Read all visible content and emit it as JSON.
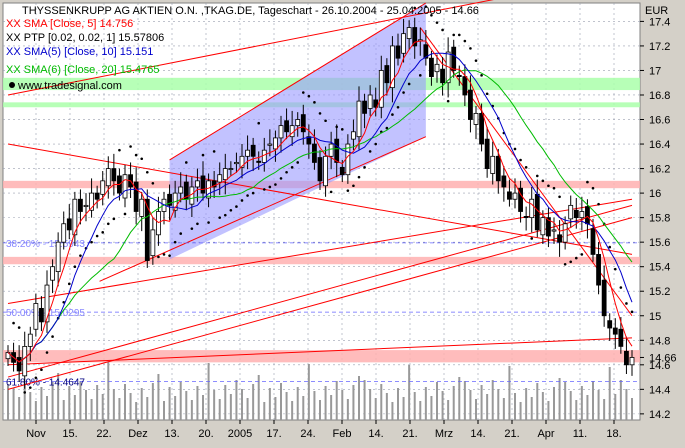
{
  "header": {
    "title": "THYSSENKRUPP AG AKTIEN O.N. ,TKAG.DE, Tageschart - 26.10.2004 - 25.04.2005 - 14.66",
    "currency": "EUR",
    "watermark": "www.tradesignal.com"
  },
  "legend": [
    {
      "label": "XX SMA [Close, 5] 14.756",
      "color": "#ff0000"
    },
    {
      "label": "XX PTP [0.02, 0.02, 1] 15.57806",
      "color": "#000000"
    },
    {
      "label": "XX SMA(5) [Close, 10] 15.151",
      "color": "#0000cc"
    },
    {
      "label": "XX SMA(6) [Close, 20] 15.4765",
      "color": "#00bb00"
    }
  ],
  "fib_labels": [
    {
      "label": "38.20% - 15.5943",
      "value": 15.5943
    },
    {
      "label": "50.00% - 15.0295",
      "value": 15.0295
    },
    {
      "label": "61.80% - 14.4647",
      "value": 14.4647
    }
  ],
  "last_price_label": "14.66",
  "colors": {
    "background": "#ffffff",
    "frame": "#d4d0c8",
    "candle": "#000000",
    "sma5": "#ff0000",
    "sma10": "#0000cc",
    "sma20": "#00bb00",
    "sar": "#000000",
    "channel_fill": "#9999ff",
    "resistance_band": "#ffb0b0",
    "support_band": "#aaffaa",
    "trendline": "#ff0000",
    "volume": "#999999"
  },
  "chart_data": {
    "type": "candlestick",
    "instrument": "THYSSENKRUPP AG AKTIEN O.N. ,TKAG.DE",
    "period": "Tageschart",
    "x_ticks": [
      "Nov",
      "15.",
      "22.",
      "Dez",
      "13.",
      "20.",
      "2005",
      "17.",
      "24.",
      "Feb",
      "14.",
      "21.",
      "Mrz",
      "14.",
      "21.",
      "Apr",
      "11.",
      "18."
    ],
    "y_ticks": [
      14.2,
      14.4,
      14.6,
      14.8,
      15,
      15.2,
      15.4,
      15.6,
      15.8,
      16,
      16.2,
      16.4,
      16.6,
      16.8,
      17,
      17.2,
      17.4
    ],
    "ylim": [
      14.15,
      17.55
    ],
    "last_close": 14.66,
    "closes": [
      14.7,
      14.62,
      14.55,
      14.75,
      14.85,
      15.1,
      14.95,
      15.25,
      15.4,
      15.6,
      15.75,
      15.7,
      15.95,
      15.85,
      15.9,
      16.0,
      15.95,
      16.1,
      16.2,
      16.1,
      16.0,
      16.15,
      16.05,
      15.85,
      15.95,
      15.45,
      15.7,
      15.85,
      15.95,
      15.9,
      16.0,
      16.05,
      15.95,
      16.05,
      16.1,
      16.0,
      16.1,
      16.05,
      16.15,
      16.2,
      16.2,
      16.25,
      16.3,
      16.35,
      16.3,
      16.25,
      16.35,
      16.4,
      16.45,
      16.55,
      16.5,
      16.55,
      16.6,
      16.5,
      16.4,
      16.25,
      16.1,
      16.3,
      16.4,
      16.25,
      16.15,
      16.4,
      16.5,
      16.75,
      16.65,
      16.8,
      16.7,
      17.0,
      16.9,
      17.2,
      17.1,
      17.3,
      17.35,
      17.2,
      17.25,
      17.1,
      16.95,
      17.05,
      16.9,
      17.15,
      17.0,
      16.95,
      16.8,
      16.6,
      16.65,
      16.4,
      16.2,
      16.3,
      16.1,
      16.05,
      15.95,
      16.0,
      15.85,
      15.8,
      15.95,
      15.7,
      15.8,
      15.65,
      15.7,
      15.6,
      15.75,
      15.9,
      15.8,
      15.85,
      15.75,
      15.5,
      15.25,
      15.0,
      14.9,
      14.85,
      14.75,
      14.6,
      14.66
    ],
    "series": [
      {
        "name": "XX SMA [Close, 5] 14.756",
        "kind": "sma",
        "period": 5
      },
      {
        "name": "XX PTP [0.02, 0.02, 1] 15.57806",
        "kind": "sar"
      },
      {
        "name": "XX SMA(5) [Close, 10] 15.151",
        "kind": "sma",
        "period": 10
      },
      {
        "name": "XX SMA(6) [Close, 20] 15.4765",
        "kind": "sma",
        "period": 20
      }
    ],
    "fibonacci": [
      {
        "level": "38.20%",
        "value": 15.5943
      },
      {
        "level": "50.00%",
        "value": 15.0295
      },
      {
        "level": "61.80%",
        "value": 14.4647
      }
    ],
    "resistance_bands": [
      [
        16.04,
        16.1
      ],
      [
        15.42,
        15.48
      ],
      [
        14.62,
        14.72
      ]
    ],
    "support_bands": [
      [
        16.84,
        16.94
      ],
      [
        16.7,
        16.74
      ]
    ],
    "channel": {
      "start_index": 29,
      "end_index": 75,
      "lower_start": 15.46,
      "lower_end": 16.46,
      "upper_start": 16.27,
      "upper_end": 17.55
    },
    "trendlines": [
      {
        "from": [
          0,
          16.8
        ],
        "to": [
          112,
          17.8
        ]
      },
      {
        "from": [
          0,
          16.4
        ],
        "to": [
          112,
          15.5
        ]
      },
      {
        "from": [
          0,
          15.1
        ],
        "to": [
          112,
          15.95
        ]
      },
      {
        "from": [
          0,
          14.5
        ],
        "to": [
          112,
          15.9
        ]
      },
      {
        "from": [
          0,
          14.4
        ],
        "to": [
          112,
          15.8
        ]
      },
      {
        "from": [
          0,
          14.6
        ],
        "to": [
          112,
          14.82
        ]
      },
      {
        "from": [
          74,
          17.35
        ],
        "to": [
          112,
          15.0
        ]
      }
    ]
  }
}
